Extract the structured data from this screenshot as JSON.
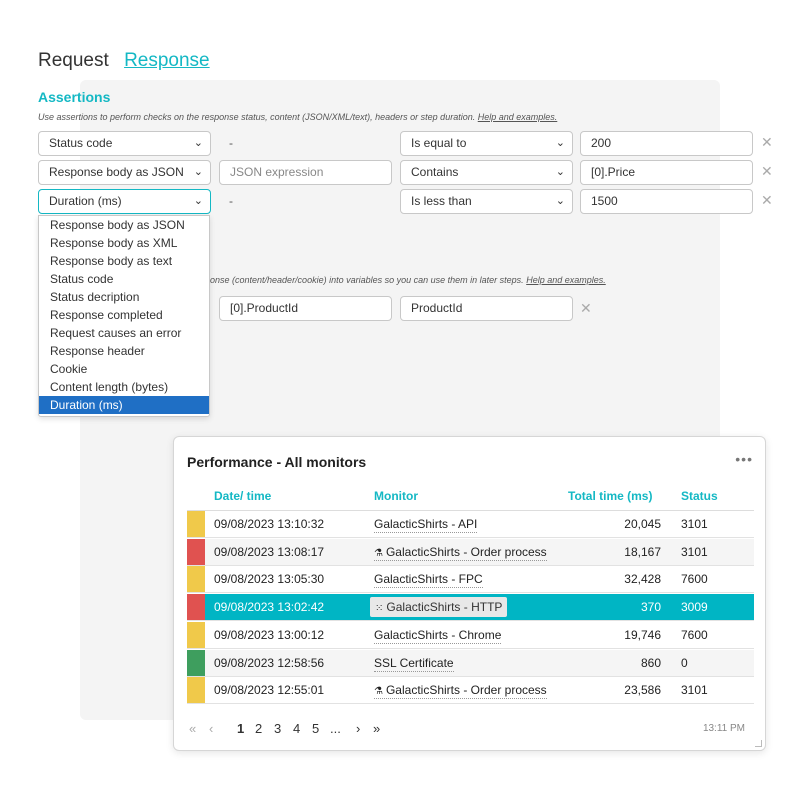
{
  "tabs": {
    "request": "Request",
    "response": "Response"
  },
  "assertions": {
    "title": "Assertions",
    "hint": "Use assertions to perform checks on the response status, content (JSON/XML/text), headers or step duration.",
    "hint_link": "Help and examples.",
    "rows": [
      {
        "source": "Status code",
        "expression": "-",
        "operator": "Is equal to",
        "value": "200"
      },
      {
        "source": "Response body as JSON",
        "expression_placeholder": "JSON expression",
        "operator": "Contains",
        "value": "[0].Price"
      },
      {
        "source": "Duration (ms)",
        "expression": "-",
        "operator": "Is less than",
        "value": "1500"
      }
    ]
  },
  "dropdown": {
    "options": [
      "Response body as JSON",
      "Response body as XML",
      "Response body as text",
      "Status code",
      "Status decription",
      "Response completed",
      "Request causes an error",
      "Response header",
      "Cookie",
      "Content length (bytes)",
      "Duration (ms)"
    ],
    "selected": "Duration (ms)"
  },
  "variables": {
    "hint": "onse (content/header/cookie) into variables so you can use them in later steps.",
    "hint_link": "Help and examples.",
    "expression": "[0].ProductId",
    "name": "ProductId"
  },
  "performance": {
    "title": "Performance - All monitors",
    "columns": {
      "datetime": "Date/ time",
      "monitor": "Monitor",
      "total_time": "Total time (ms)",
      "status": "Status"
    },
    "rows": [
      {
        "status_color": "#f0c94a",
        "datetime": "09/08/2023 13:10:32",
        "monitor": "GalacticShirts - API",
        "icon": "",
        "total_time": "20,045",
        "status": "3101"
      },
      {
        "status_color": "#e05250",
        "datetime": "09/08/2023 13:08:17",
        "monitor": "GalacticShirts - Order process",
        "icon": "flask",
        "total_time": "18,167",
        "status": "3101"
      },
      {
        "status_color": "#f0c94a",
        "datetime": "09/08/2023 13:05:30",
        "monitor": "GalacticShirts - FPC",
        "icon": "",
        "total_time": "32,428",
        "status": "7600"
      },
      {
        "status_color": "#e05250",
        "datetime": "09/08/2023 13:02:42",
        "monitor": "GalacticShirts - HTTP",
        "icon": "grid",
        "total_time": "370",
        "status": "3009",
        "highlighted": true
      },
      {
        "status_color": "#f0c94a",
        "datetime": "09/08/2023 13:00:12",
        "monitor": "GalacticShirts - Chrome",
        "icon": "",
        "total_time": "19,746",
        "status": "7600"
      },
      {
        "status_color": "#3e9e5e",
        "datetime": "09/08/2023 12:58:56",
        "monitor": "SSL Certificate",
        "icon": "",
        "total_time": "860",
        "status": "0"
      },
      {
        "status_color": "#f0c94a",
        "datetime": "09/08/2023 12:55:01",
        "monitor": "GalacticShirts - Order process",
        "icon": "flask",
        "total_time": "23,586",
        "status": "3101"
      }
    ],
    "pager": {
      "first": "«",
      "prev": "‹",
      "pages": [
        "1",
        "2",
        "3",
        "4",
        "5"
      ],
      "ellipsis": "...",
      "next": "›",
      "last": "»"
    },
    "time": "13:11 PM"
  }
}
